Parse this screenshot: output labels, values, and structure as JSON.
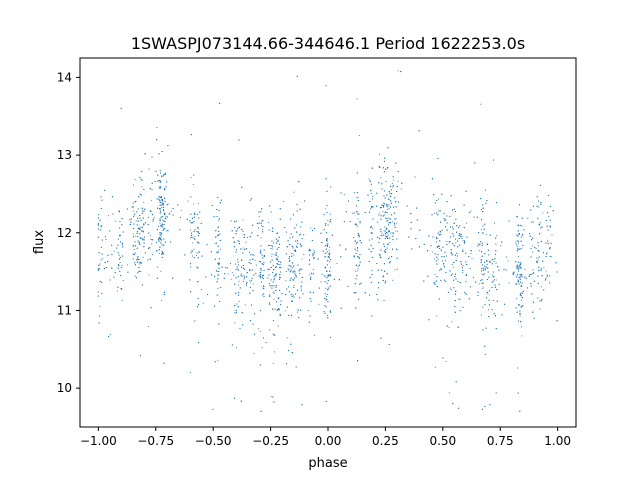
{
  "chart_data": {
    "type": "scatter",
    "title": "1SWASPJ073144.66-344646.1 Period 1622253.0s",
    "xlabel": "phase",
    "ylabel": "flux",
    "xlim": [
      -1.08,
      1.08
    ],
    "ylim": [
      9.5,
      14.25
    ],
    "xticks": [
      -1.0,
      -0.75,
      -0.5,
      -0.25,
      0.0,
      0.25,
      0.5,
      0.75,
      1.0
    ],
    "xtick_labels": [
      "−1.00",
      "−0.75",
      "−0.50",
      "−0.25",
      "0.00",
      "0.25",
      "0.50",
      "0.75",
      "1.00"
    ],
    "yticks": [
      10,
      11,
      12,
      13,
      14
    ],
    "ytick_labels": [
      "10",
      "11",
      "12",
      "13",
      "14"
    ],
    "grid": false,
    "legend": "none",
    "marker_color": "#1f77b4",
    "series": [
      {
        "phase_flux_trend": [
          [
            -1.0,
            11.85
          ],
          [
            -0.92,
            11.75
          ],
          [
            -0.85,
            11.95
          ],
          [
            -0.78,
            12.1
          ],
          [
            -0.7,
            12.25
          ],
          [
            -0.62,
            12.05
          ],
          [
            -0.55,
            11.85
          ],
          [
            -0.45,
            11.7
          ],
          [
            -0.35,
            11.6
          ],
          [
            -0.25,
            11.55
          ],
          [
            -0.15,
            11.6
          ],
          [
            -0.08,
            11.5
          ],
          [
            0.0,
            11.6
          ],
          [
            0.08,
            11.75
          ],
          [
            0.15,
            11.9
          ],
          [
            0.22,
            12.05
          ],
          [
            0.3,
            12.25
          ],
          [
            0.38,
            12.1
          ],
          [
            0.45,
            11.85
          ],
          [
            0.55,
            11.7
          ],
          [
            0.65,
            11.6
          ],
          [
            0.75,
            11.6
          ],
          [
            0.85,
            11.55
          ],
          [
            0.92,
            11.75
          ],
          [
            1.0,
            11.85
          ]
        ],
        "scatter_sigma": 0.38,
        "n_points": 5200
      }
    ]
  }
}
